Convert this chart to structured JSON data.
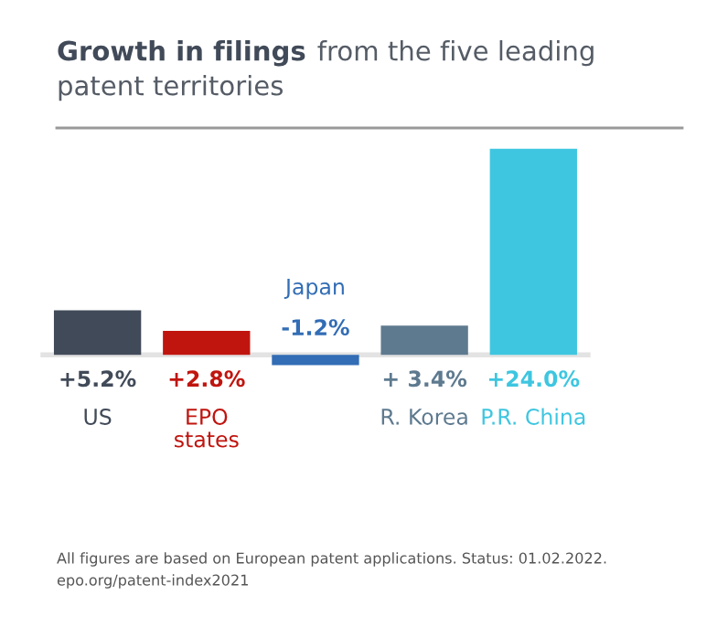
{
  "chart_data": {
    "type": "bar",
    "title": "Growth in filings",
    "subtitle": "from the five leading patent territories",
    "categories": [
      "US",
      "EPO\nstates",
      "Japan",
      "R. Korea",
      "P.R. China"
    ],
    "values": [
      5.2,
      2.8,
      -1.2,
      3.4,
      24.0
    ],
    "value_labels": [
      "+5.2%",
      "+2.8%",
      "-1.2%",
      "+ 3.4%",
      "+24.0%"
    ],
    "colors": [
      "#414a58",
      "#c0150f",
      "#326db5",
      "#5e7a8f",
      "#3ec6e0"
    ],
    "legend": false,
    "annotations": [
      "All figures are based on European patent applications. Status: 01.02.2022.",
      "epo.org/patent-index2021"
    ]
  }
}
